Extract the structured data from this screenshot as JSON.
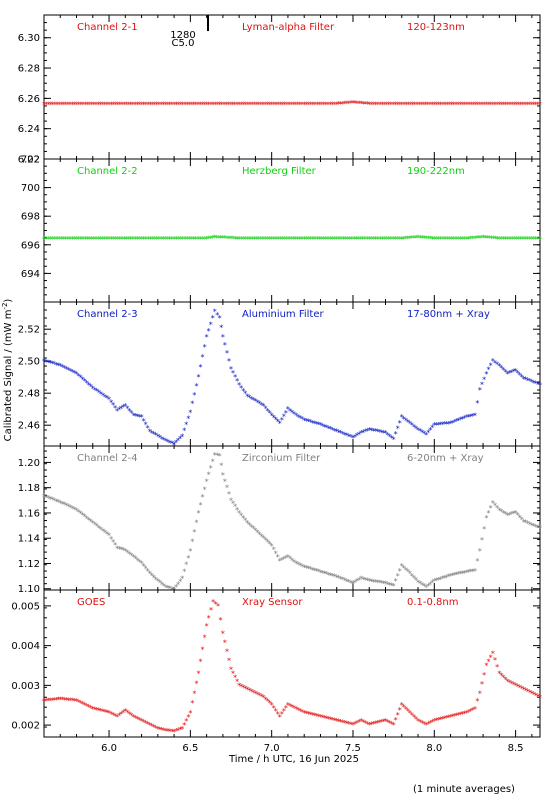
{
  "figure": {
    "xlabel": "Time / h UTC, 16 Jun 2025",
    "ylabel": "Calibrated Signal / (mW m",
    "ylabel_sup": "-2",
    "ylabel_end": ")",
    "footnote": "(1 minute averages)",
    "marker_text_1": "1280",
    "marker_text_2": "C5.0"
  },
  "chart_data": [
    {
      "type": "scatter",
      "channel": "Channel 2-1",
      "filter": "Lyman-alpha Filter",
      "band": "120-123nm",
      "color": "#e01010",
      "xlim": [
        5.6,
        8.65
      ],
      "ylim": [
        6.22,
        6.315
      ],
      "yticks": [
        "6.22",
        "6.24",
        "6.26",
        "6.28",
        "6.30"
      ],
      "yticks_values": [
        6.22,
        6.24,
        6.26,
        6.28,
        6.3
      ],
      "x": [
        5.6,
        5.8,
        6.0,
        6.2,
        6.4,
        6.6,
        6.8,
        7.0,
        7.2,
        7.4,
        7.5,
        7.6,
        7.8,
        8.0,
        8.2,
        8.4,
        8.65
      ],
      "y": [
        6.256,
        6.256,
        6.256,
        6.256,
        6.256,
        6.256,
        6.256,
        6.256,
        6.256,
        6.256,
        6.257,
        6.256,
        6.256,
        6.256,
        6.256,
        6.256,
        6.256
      ]
    },
    {
      "type": "scatter",
      "channel": "Channel 2-2",
      "filter": "Herzberg Filter",
      "band": "190-222nm",
      "color": "#10d010",
      "xlim": [
        5.6,
        8.65
      ],
      "ylim": [
        692,
        702
      ],
      "yticks": [
        "694",
        "696",
        "698",
        "700",
        "702"
      ],
      "yticks_values": [
        694,
        696,
        698,
        700,
        702
      ],
      "x": [
        5.6,
        5.8,
        6.0,
        6.2,
        6.4,
        6.6,
        6.65,
        6.8,
        7.0,
        7.2,
        7.4,
        7.6,
        7.8,
        7.9,
        8.0,
        8.2,
        8.3,
        8.4,
        8.65
      ],
      "y": [
        696.4,
        696.4,
        696.4,
        696.4,
        696.4,
        696.4,
        696.5,
        696.4,
        696.4,
        696.4,
        696.4,
        696.4,
        696.4,
        696.5,
        696.4,
        696.4,
        696.5,
        696.4,
        696.4
      ]
    },
    {
      "type": "scatter",
      "channel": "Channel 2-3",
      "filter": "Aluminium Filter",
      "band": "17-80nm + Xray",
      "color": "#1020c0",
      "xlim": [
        5.6,
        8.65
      ],
      "ylim": [
        2.447,
        2.537
      ],
      "yticks": [
        "2.46",
        "2.48",
        "2.50",
        "2.52"
      ],
      "yticks_values": [
        2.46,
        2.48,
        2.5,
        2.52
      ],
      "x": [
        5.6,
        5.7,
        5.8,
        5.9,
        6.0,
        6.05,
        6.1,
        6.15,
        6.2,
        6.25,
        6.3,
        6.35,
        6.4,
        6.45,
        6.5,
        6.55,
        6.6,
        6.65,
        6.68,
        6.7,
        6.75,
        6.8,
        6.85,
        6.9,
        6.95,
        7.0,
        7.05,
        7.1,
        7.15,
        7.2,
        7.3,
        7.4,
        7.5,
        7.55,
        7.6,
        7.7,
        7.75,
        7.8,
        7.85,
        7.9,
        7.95,
        8.0,
        8.1,
        8.2,
        8.25,
        8.28,
        8.32,
        8.36,
        8.4,
        8.45,
        8.5,
        8.55,
        8.6,
        8.65
      ],
      "y": [
        2.5,
        2.497,
        2.492,
        2.483,
        2.476,
        2.469,
        2.472,
        2.466,
        2.465,
        2.456,
        2.453,
        2.45,
        2.448,
        2.453,
        2.468,
        2.49,
        2.515,
        2.531,
        2.527,
        2.515,
        2.495,
        2.485,
        2.478,
        2.475,
        2.472,
        2.466,
        2.461,
        2.47,
        2.466,
        2.463,
        2.46,
        2.456,
        2.452,
        2.455,
        2.457,
        2.455,
        2.451,
        2.465,
        2.461,
        2.457,
        2.454,
        2.46,
        2.461,
        2.465,
        2.466,
        2.482,
        2.492,
        2.5,
        2.497,
        2.492,
        2.494,
        2.489,
        2.487,
        2.485
      ]
    },
    {
      "type": "scatter",
      "channel": "Channel 2-4",
      "filter": "Zirconium Filter",
      "band": "6-20nm + Xray",
      "color": "#808080",
      "xlim": [
        5.6,
        8.65
      ],
      "ylim": [
        1.099,
        1.213
      ],
      "yticks": [
        "1.10",
        "1.12",
        "1.14",
        "1.16",
        "1.18",
        "1.20"
      ],
      "yticks_values": [
        1.1,
        1.12,
        1.14,
        1.16,
        1.18,
        1.2
      ],
      "x": [
        5.6,
        5.7,
        5.8,
        5.9,
        6.0,
        6.05,
        6.1,
        6.15,
        6.2,
        6.25,
        6.3,
        6.35,
        6.4,
        6.45,
        6.5,
        6.55,
        6.6,
        6.65,
        6.68,
        6.7,
        6.75,
        6.8,
        6.85,
        6.9,
        6.95,
        7.0,
        7.05,
        7.1,
        7.15,
        7.2,
        7.3,
        7.4,
        7.5,
        7.55,
        7.6,
        7.7,
        7.75,
        7.8,
        7.85,
        7.9,
        7.95,
        8.0,
        8.1,
        8.2,
        8.25,
        8.28,
        8.32,
        8.36,
        8.4,
        8.45,
        8.5,
        8.55,
        8.6,
        8.65
      ],
      "y": [
        1.173,
        1.168,
        1.162,
        1.152,
        1.142,
        1.132,
        1.13,
        1.125,
        1.12,
        1.112,
        1.106,
        1.101,
        1.099,
        1.108,
        1.13,
        1.16,
        1.185,
        1.206,
        1.205,
        1.19,
        1.17,
        1.16,
        1.152,
        1.146,
        1.14,
        1.134,
        1.122,
        1.125,
        1.12,
        1.117,
        1.113,
        1.109,
        1.104,
        1.108,
        1.106,
        1.104,
        1.102,
        1.118,
        1.112,
        1.105,
        1.101,
        1.106,
        1.11,
        1.113,
        1.114,
        1.13,
        1.156,
        1.168,
        1.162,
        1.158,
        1.16,
        1.153,
        1.15,
        1.148
      ]
    },
    {
      "type": "scatter",
      "channel": "GOES",
      "filter": "Xray Sensor",
      "band": "0.1-0.8nm",
      "color": "#e01010",
      "xlim": [
        5.6,
        8.65
      ],
      "ylim": [
        0.0017,
        0.0054
      ],
      "yticks": [
        "0.002",
        "0.003",
        "0.004",
        "0.005"
      ],
      "yticks_values": [
        0.002,
        0.003,
        0.004,
        0.005
      ],
      "x": [
        5.6,
        5.7,
        5.8,
        5.9,
        6.0,
        6.05,
        6.1,
        6.15,
        6.2,
        6.25,
        6.3,
        6.35,
        6.4,
        6.45,
        6.5,
        6.55,
        6.6,
        6.64,
        6.67,
        6.7,
        6.75,
        6.8,
        6.85,
        6.9,
        6.95,
        7.0,
        7.05,
        7.1,
        7.15,
        7.2,
        7.3,
        7.4,
        7.5,
        7.55,
        7.6,
        7.7,
        7.75,
        7.8,
        7.85,
        7.9,
        7.95,
        8.0,
        8.1,
        8.2,
        8.25,
        8.28,
        8.32,
        8.36,
        8.4,
        8.45,
        8.5,
        8.55,
        8.6,
        8.65
      ],
      "y": [
        0.0026,
        0.00265,
        0.0026,
        0.0024,
        0.0023,
        0.0022,
        0.00235,
        0.0022,
        0.0021,
        0.002,
        0.0019,
        0.00185,
        0.00183,
        0.0019,
        0.0023,
        0.0033,
        0.0045,
        0.0051,
        0.005,
        0.0043,
        0.0034,
        0.003,
        0.0029,
        0.0028,
        0.0027,
        0.0025,
        0.0022,
        0.0025,
        0.0024,
        0.0023,
        0.0022,
        0.0021,
        0.002,
        0.0021,
        0.002,
        0.0021,
        0.002,
        0.0025,
        0.0023,
        0.0021,
        0.002,
        0.0021,
        0.0022,
        0.0023,
        0.0024,
        0.0028,
        0.0035,
        0.0038,
        0.0033,
        0.0031,
        0.003,
        0.0029,
        0.0028,
        0.0027
      ]
    }
  ],
  "xaxis": {
    "ticks": [
      "6.0",
      "6.5",
      "7.0",
      "7.5",
      "8.0",
      "8.5"
    ],
    "tick_values": [
      6.0,
      6.5,
      7.0,
      7.5,
      8.0,
      8.5
    ]
  }
}
